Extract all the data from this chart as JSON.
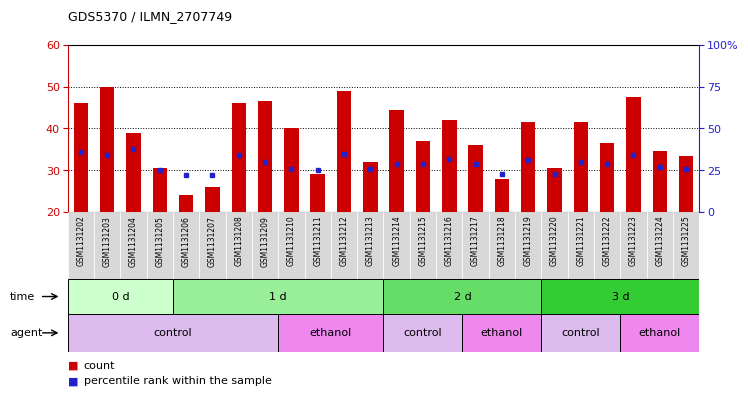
{
  "title": "GDS5370 / ILMN_2707749",
  "samples": [
    "GSM1131202",
    "GSM1131203",
    "GSM1131204",
    "GSM1131205",
    "GSM1131206",
    "GSM1131207",
    "GSM1131208",
    "GSM1131209",
    "GSM1131210",
    "GSM1131211",
    "GSM1131212",
    "GSM1131213",
    "GSM1131214",
    "GSM1131215",
    "GSM1131216",
    "GSM1131217",
    "GSM1131218",
    "GSM1131219",
    "GSM1131220",
    "GSM1131221",
    "GSM1131222",
    "GSM1131223",
    "GSM1131224",
    "GSM1131225"
  ],
  "counts": [
    46.0,
    50.0,
    39.0,
    30.5,
    24.0,
    26.0,
    46.0,
    46.5,
    40.0,
    29.0,
    49.0,
    32.0,
    44.5,
    37.0,
    42.0,
    36.0,
    28.0,
    41.5,
    30.5,
    41.5,
    36.5,
    47.5,
    34.5,
    33.5
  ],
  "percentile_ranks": [
    36,
    34,
    38,
    25,
    22,
    22,
    34,
    30,
    26,
    25,
    35,
    26,
    29,
    29,
    32,
    29,
    23,
    31,
    23,
    30,
    29,
    34,
    27,
    26
  ],
  "ymin": 20,
  "ymax": 60,
  "yticks_left": [
    20,
    30,
    40,
    50,
    60
  ],
  "yticks_right_vals": [
    0,
    25,
    50,
    75,
    100
  ],
  "yticks_right_labels": [
    "0",
    "25",
    "50",
    "75",
    "100%"
  ],
  "bar_color": "#cc0000",
  "marker_color": "#2222cc",
  "time_groups": [
    {
      "label": "0 d",
      "start": 0,
      "end": 4,
      "color": "#ccffcc"
    },
    {
      "label": "1 d",
      "start": 4,
      "end": 12,
      "color": "#99ee99"
    },
    {
      "label": "2 d",
      "start": 12,
      "end": 18,
      "color": "#66dd66"
    },
    {
      "label": "3 d",
      "start": 18,
      "end": 24,
      "color": "#33cc33"
    }
  ],
  "agent_groups": [
    {
      "label": "control",
      "start": 0,
      "end": 8,
      "color": "#ddbbee"
    },
    {
      "label": "ethanol",
      "start": 8,
      "end": 12,
      "color": "#ee88ee"
    },
    {
      "label": "control",
      "start": 12,
      "end": 15,
      "color": "#ddbbee"
    },
    {
      "label": "ethanol",
      "start": 15,
      "end": 18,
      "color": "#ee88ee"
    },
    {
      "label": "control",
      "start": 18,
      "end": 21,
      "color": "#ddbbee"
    },
    {
      "label": "ethanol",
      "start": 21,
      "end": 24,
      "color": "#ee88ee"
    }
  ],
  "legend_count_label": "count",
  "legend_pct_label": "percentile rank within the sample",
  "bg_color": "#ffffff",
  "left_tick_color": "#cc0000",
  "right_tick_color": "#2222cc",
  "grid_yticks": [
    30,
    40,
    50
  ],
  "sample_cell_color": "#d8d8d8"
}
